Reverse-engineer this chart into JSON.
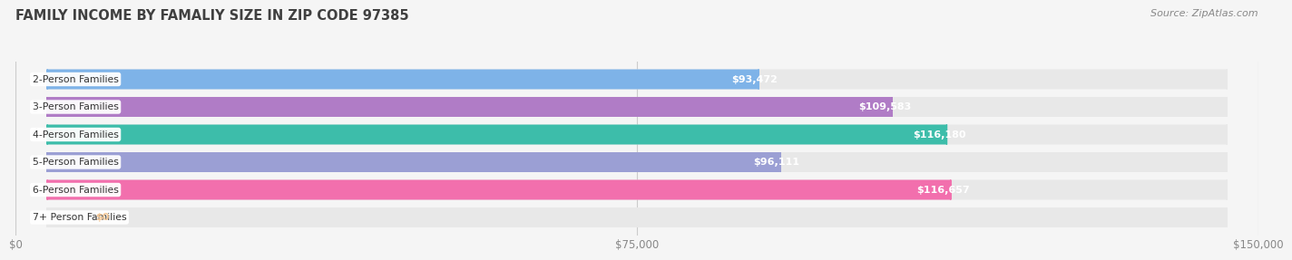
{
  "title": "FAMILY INCOME BY FAMALIY SIZE IN ZIP CODE 97385",
  "source": "Source: ZipAtlas.com",
  "categories": [
    "2-Person Families",
    "3-Person Families",
    "4-Person Families",
    "5-Person Families",
    "6-Person Families",
    "7+ Person Families"
  ],
  "values": [
    93472,
    109583,
    116180,
    96111,
    116657,
    0
  ],
  "bar_colors": [
    "#7EB3E8",
    "#B07CC6",
    "#3DBDAA",
    "#9B9FD4",
    "#F26FAD",
    "#F5C998"
  ],
  "xlim": [
    0,
    150000
  ],
  "xticks": [
    0,
    75000,
    150000
  ],
  "xtick_labels": [
    "$0",
    "$75,000",
    "$150,000"
  ],
  "background_color": "#f5f5f5",
  "bar_background_color": "#e8e8e8",
  "title_color": "#404040",
  "source_color": "#888888",
  "value_labels": [
    "$93,472",
    "$109,583",
    "$116,180",
    "$96,111",
    "$116,657",
    "$0"
  ]
}
